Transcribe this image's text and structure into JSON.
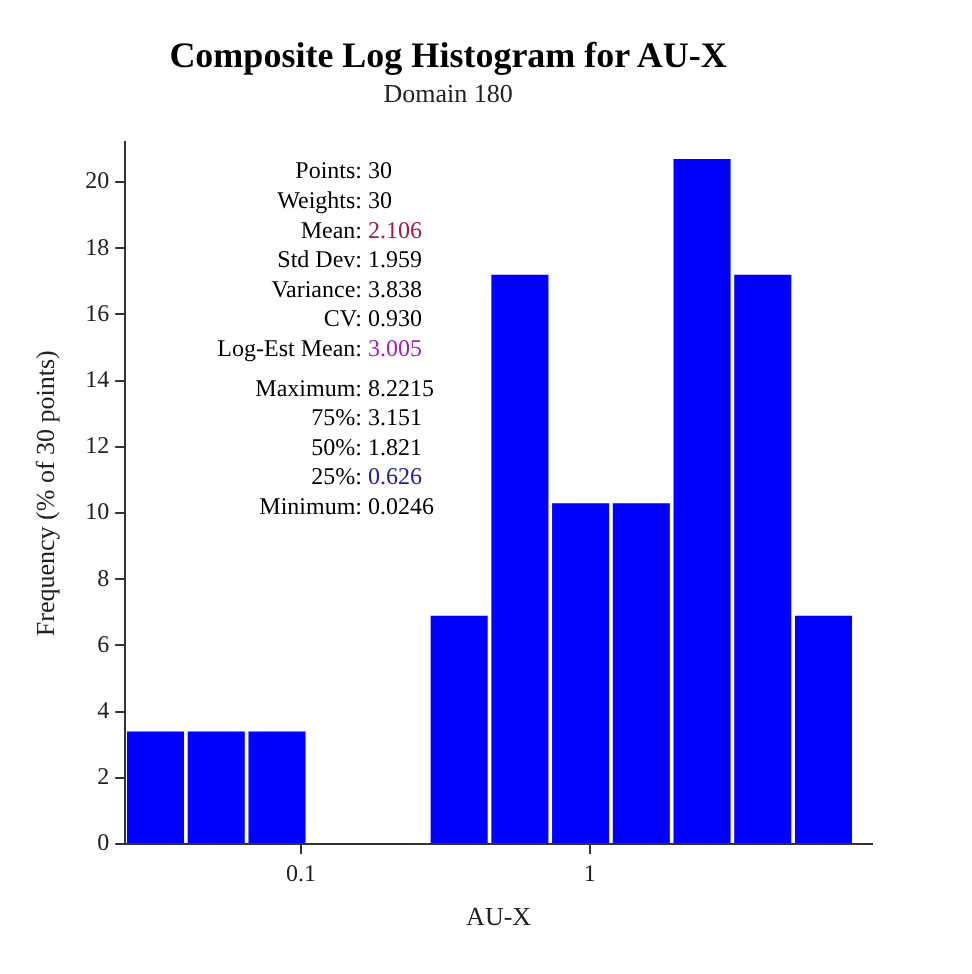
{
  "chart_data": {
    "type": "histogram",
    "title": "Composite Log Histogram for AU-X",
    "subtitle": "Domain 180",
    "xlabel": "AU-X",
    "ylabel": "Frequency (% of 30 points)",
    "bins": [
      0.0246,
      0.0399,
      0.0648,
      0.1052,
      0.1707,
      0.2771,
      0.4497,
      0.7299,
      1.1846,
      1.9226,
      3.1204,
      5.0645,
      8.2215
    ],
    "values": [
      3.4,
      3.4,
      3.4,
      0,
      0,
      6.9,
      17.2,
      10.3,
      10.3,
      20.7,
      17.2,
      6.9
    ],
    "color": "#0000ff",
    "log": "x",
    "xlim": [
      0.0246,
      9.5
    ],
    "xticks": [
      0.1,
      1
    ],
    "ylim": [
      0,
      21.2
    ],
    "yticks": [
      0,
      2,
      4,
      6,
      8,
      10,
      12,
      14,
      16,
      18,
      20
    ],
    "grid": false,
    "legend": false,
    "annotations": [
      "Points: 30",
      "Weights: 30",
      "Mean: 2.106",
      "Std Dev: 1.959",
      "Variance: 3.838",
      "CV: 0.930",
      "Log-Est Mean: 3.005",
      "Maximum: 8.2215",
      "75%: 3.151",
      "50%: 1.821",
      "25%: 0.626",
      "Minimum: 0.0246"
    ]
  }
}
